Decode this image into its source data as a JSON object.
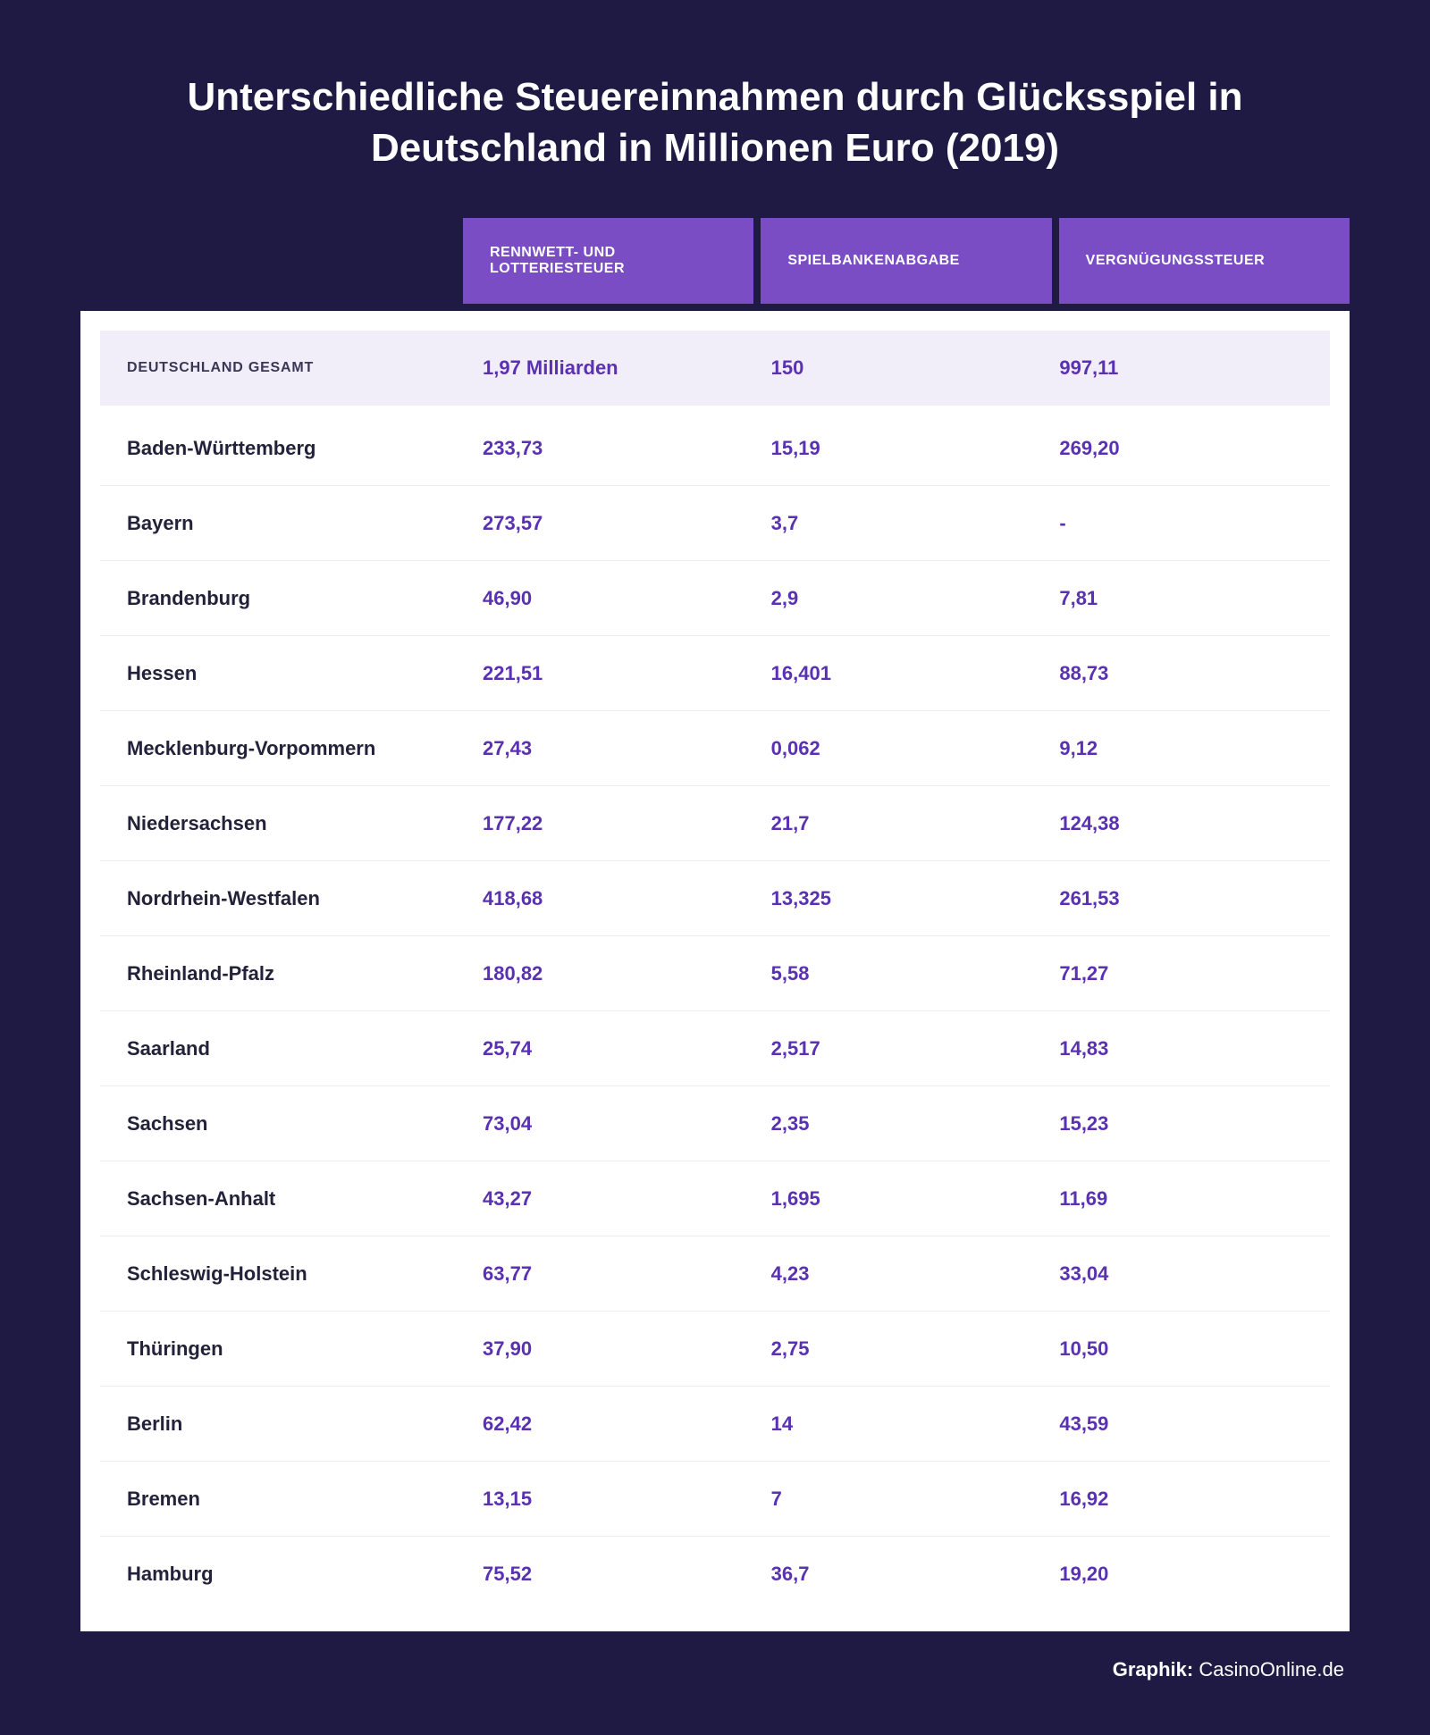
{
  "title": "Unterschiedliche Steuereinnahmen durch Glücksspiel in Deutschland in Millionen Euro (2019)",
  "columns": [
    "RENNWETT- UND LOTTERIESTEUER",
    "SPIELBANKENABGABE",
    "VERGNÜGUNGSSTEUER"
  ],
  "total": {
    "label": "DEUTSCHLAND GESAMT",
    "values": [
      "1,97 Milliarden",
      "150",
      "997,11"
    ]
  },
  "rows": [
    {
      "label": "Baden-Württemberg",
      "values": [
        "233,73",
        "15,19",
        "269,20"
      ]
    },
    {
      "label": "Bayern",
      "values": [
        "273,57",
        "3,7",
        "-"
      ]
    },
    {
      "label": "Brandenburg",
      "values": [
        "46,90",
        "2,9",
        "7,81"
      ]
    },
    {
      "label": "Hessen",
      "values": [
        "221,51",
        "16,401",
        "88,73"
      ]
    },
    {
      "label": "Mecklenburg-Vorpommern",
      "values": [
        "27,43",
        "0,062",
        "9,12"
      ]
    },
    {
      "label": "Niedersachsen",
      "values": [
        "177,22",
        "21,7",
        "124,38"
      ]
    },
    {
      "label": "Nordrhein-Westfalen",
      "values": [
        "418,68",
        "13,325",
        "261,53"
      ]
    },
    {
      "label": "Rheinland-Pfalz",
      "values": [
        "180,82",
        "5,58",
        "71,27"
      ]
    },
    {
      "label": "Saarland",
      "values": [
        "25,74",
        "2,517",
        "14,83"
      ]
    },
    {
      "label": "Sachsen",
      "values": [
        "73,04",
        "2,35",
        "15,23"
      ]
    },
    {
      "label": "Sachsen-Anhalt",
      "values": [
        "43,27",
        "1,695",
        "11,69"
      ]
    },
    {
      "label": "Schleswig-Holstein",
      "values": [
        "63,77",
        "4,23",
        "33,04"
      ]
    },
    {
      "label": "Thüringen",
      "values": [
        "37,90",
        "2,75",
        "10,50"
      ]
    },
    {
      "label": "Berlin",
      "values": [
        "62,42",
        "14",
        "43,59"
      ]
    },
    {
      "label": "Bremen",
      "values": [
        "13,15",
        "7",
        "16,92"
      ]
    },
    {
      "label": "Hamburg",
      "values": [
        "75,52",
        "36,7",
        "19,20"
      ]
    }
  ],
  "credit_label": "Graphik:",
  "credit_source": "CasinoOnline.de",
  "colors": {
    "page_bg": "#1f1a44",
    "header_bg": "#7a4dc4",
    "table_bg": "#ffffff",
    "total_row_bg": "#f1edf9",
    "value_color": "#5a31b3",
    "label_color": "#23223a",
    "divider": "#eceaf2"
  },
  "type": "table"
}
